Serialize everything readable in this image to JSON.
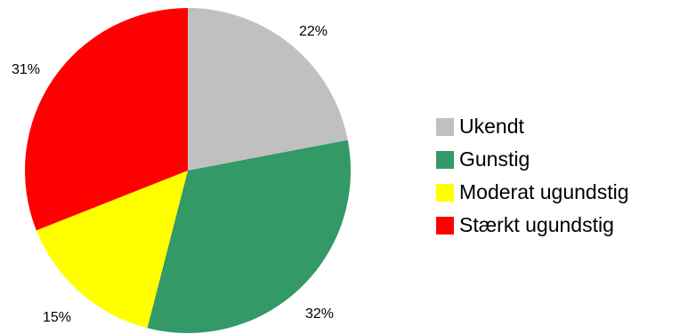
{
  "chart_data": {
    "type": "pie",
    "categories": [
      "Ukendt",
      "Gunstig",
      "Moderat ugundstig",
      "Stærkt ugundstig"
    ],
    "values": [
      22,
      32,
      15,
      31
    ],
    "data_labels": [
      "22%",
      "32%",
      "15%",
      "31%"
    ],
    "colors": [
      "#c0c0c0",
      "#339966",
      "#ffff00",
      "#ff0000"
    ],
    "start_angle_deg": 0,
    "direction": "clockwise",
    "legend_position": "right"
  }
}
